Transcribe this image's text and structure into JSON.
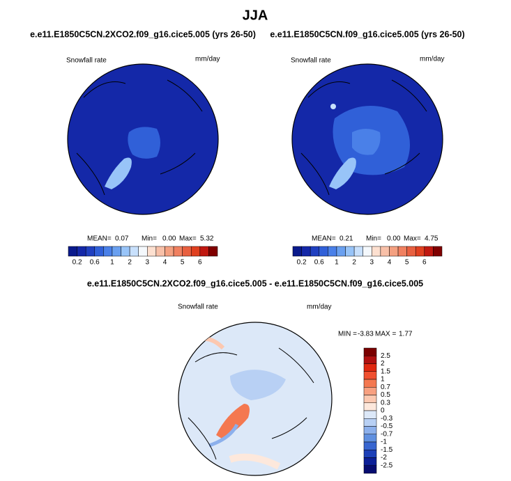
{
  "title": "JJA",
  "panels": [
    {
      "title": "e.e11.E1850C5CN.2XCO2.f09_g16.cice5.005 (yrs 26-50)",
      "field": "Snowfall rate",
      "units": "mm/day",
      "stats": [
        {
          "label": "MEAN=",
          "value": "0.07"
        },
        {
          "label": "Min=",
          "value": "0.00"
        },
        {
          "label": "Max=",
          "value": "5.32"
        }
      ]
    },
    {
      "title": "e.e11.E1850C5CN.f09_g16.cice5.005 (yrs 26-50)",
      "field": "Snowfall rate",
      "units": "mm/day",
      "stats": [
        {
          "label": "MEAN=",
          "value": "0.21"
        },
        {
          "label": "Min=",
          "value": "0.00"
        },
        {
          "label": "Max=",
          "value": "4.75"
        }
      ]
    }
  ],
  "colorbar": {
    "colors": [
      "#0a1a8c",
      "#1428a8",
      "#2040c0",
      "#3060d8",
      "#4a80e8",
      "#6aa0f0",
      "#98c4f8",
      "#c8e0fc",
      "#f4f8fc",
      "#fde0d0",
      "#f8c0a8",
      "#f4a080",
      "#f08060",
      "#e86040",
      "#e04020",
      "#c01810",
      "#800000"
    ],
    "labels": [
      "0.2",
      "0.6",
      "1",
      "2",
      "3",
      "4",
      "5",
      "6"
    ]
  },
  "difference": {
    "title": "e.e11.E1850C5CN.2XCO2.f09_g16.cice5.005 - e.e11.E1850C5CN.f09_g16.cice5.005",
    "field": "Snowfall rate",
    "units": "mm/day",
    "min_label": "MIN =",
    "min": "-3.83",
    "max_label": "MAX =",
    "max": "1.77",
    "colorbar": {
      "colors": [
        "#7a0000",
        "#b01010",
        "#e02810",
        "#f05030",
        "#f47850",
        "#f8a080",
        "#fcc8b0",
        "#fde8dc",
        "#dce8f8",
        "#b8d0f4",
        "#8cb0ec",
        "#6090e0",
        "#3866d0",
        "#1c40b8",
        "#0c2098",
        "#060c70"
      ],
      "labels": [
        "2.5",
        "2",
        "1.5",
        "1",
        "0.7",
        "0.5",
        "0.3",
        "0",
        "-0.3",
        "-0.5",
        "-0.7",
        "-1",
        "-1.5",
        "-2",
        "-2.5"
      ]
    }
  }
}
